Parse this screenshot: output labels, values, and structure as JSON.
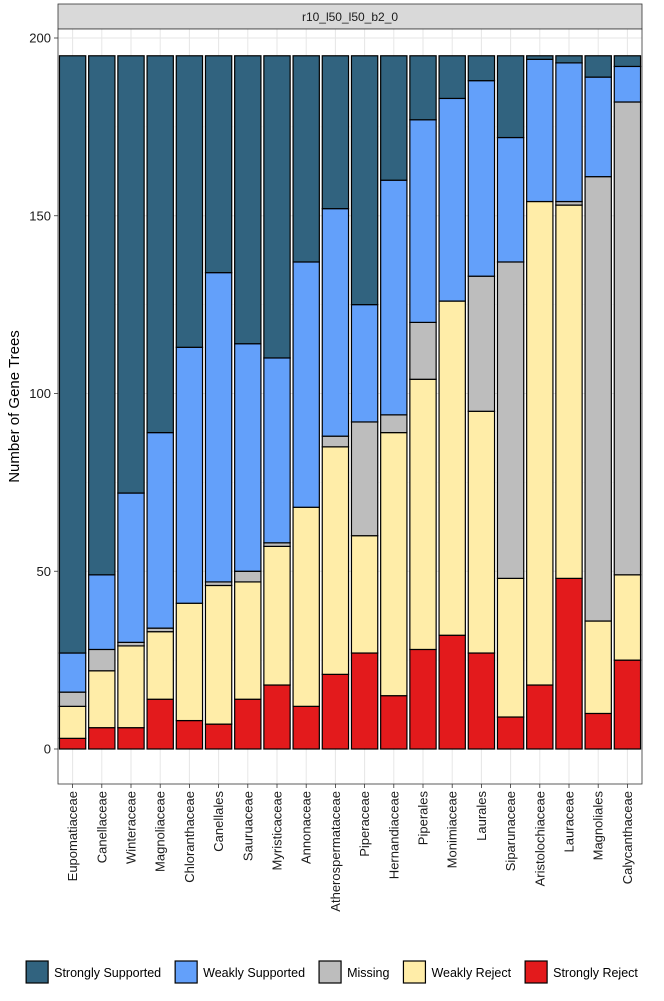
{
  "chart_data": {
    "type": "bar",
    "stacked": true,
    "facet_label": "r10_l50_l50_b2_0",
    "xlabel": "",
    "ylabel": "Number of Gene Trees",
    "ylim": [
      0,
      210
    ],
    "yticks": [
      0,
      50,
      100,
      150,
      200
    ],
    "grid": true,
    "legend_position": "bottom",
    "categories": [
      "Eupomatiaceae",
      "Canellaceae",
      "Winteraceae",
      "Magnoliaceae",
      "Chloranthaceae",
      "Canellales",
      "Sauruaceae",
      "Myristicaceae",
      "Annonaceae",
      "Atherospermataceae",
      "Piperaceae",
      "Hernandiaceae",
      "Piperales",
      "Monimiaceae",
      "Laurales",
      "Siparunaceae",
      "Aristolochiaceae",
      "Lauraceae",
      "Magnoliales",
      "Calycanthaceae"
    ],
    "series": [
      {
        "name": "Strongly Reject",
        "color": "#E31A1C",
        "values": [
          3,
          6,
          6,
          14,
          8,
          7,
          14,
          18,
          12,
          21,
          27,
          15,
          28,
          32,
          27,
          9,
          18,
          48,
          10,
          25
        ]
      },
      {
        "name": "Weakly Reject",
        "color": "#FFEDA8",
        "values": [
          9,
          16,
          23,
          19,
          33,
          39,
          33,
          39,
          56,
          64,
          33,
          74,
          76,
          94,
          68,
          39,
          136,
          105,
          26,
          24
        ]
      },
      {
        "name": "Missing",
        "color": "#BDBDBD",
        "values": [
          4,
          6,
          1,
          1,
          0,
          1,
          3,
          1,
          0,
          3,
          32,
          5,
          16,
          0,
          38,
          89,
          0,
          1,
          125,
          133
        ]
      },
      {
        "name": "Weakly Supported",
        "color": "#63A0FA",
        "values": [
          11,
          21,
          42,
          55,
          72,
          87,
          64,
          52,
          69,
          64,
          33,
          66,
          57,
          57,
          55,
          35,
          40,
          39,
          28,
          10
        ]
      },
      {
        "name": "Strongly Supported",
        "color": "#31637F",
        "values": [
          168,
          146,
          123,
          106,
          82,
          61,
          81,
          85,
          58,
          43,
          70,
          35,
          18,
          12,
          7,
          23,
          1,
          2,
          6,
          3
        ]
      }
    ],
    "legend_order": [
      "Strongly Supported",
      "Weakly Supported",
      "Missing",
      "Weakly Reject",
      "Strongly Reject"
    ]
  }
}
